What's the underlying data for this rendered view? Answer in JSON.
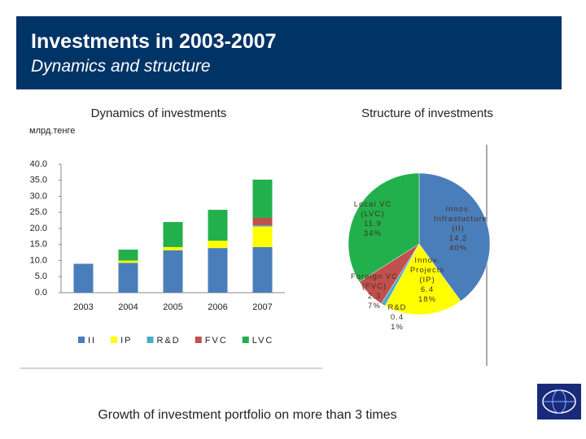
{
  "header": {
    "title": "Investments in 2003-2007",
    "subtitle": "Dynamics and structure"
  },
  "footer": "Growth of investment portfolio on more than 3 times",
  "chart_data": [
    {
      "type": "bar",
      "stacked": true,
      "title": "Dynamics of investments",
      "y_label": "млрд.тенге",
      "categories": [
        "2003",
        "2004",
        "2005",
        "2006",
        "2007"
      ],
      "series": [
        {
          "name": "II",
          "color": "#4a7ebb",
          "values": [
            9.0,
            9.3,
            13.2,
            13.9,
            14.2
          ]
        },
        {
          "name": "IP",
          "color": "#ffff00",
          "values": [
            0,
            0.7,
            1.0,
            2.3,
            6.4
          ]
        },
        {
          "name": "R&D",
          "color": "#4bacc6",
          "values": [
            0,
            0,
            0,
            0,
            0.4
          ]
        },
        {
          "name": "FVC",
          "color": "#c0504d",
          "values": [
            0,
            0,
            0,
            0,
            2.3
          ]
        },
        {
          "name": "LVC",
          "color": "#22b04c",
          "values": [
            0,
            3.4,
            7.8,
            9.6,
            11.9
          ]
        }
      ],
      "ylim": [
        0,
        40
      ],
      "yticks": [
        {
          "value": 0,
          "label": "0.0"
        },
        {
          "value": 5,
          "label": "5.0"
        },
        {
          "value": 10,
          "label": "10.0"
        },
        {
          "value": 15,
          "label": "15.0"
        },
        {
          "value": 20,
          "label": "20.0"
        },
        {
          "value": 25,
          "label": "25.0"
        },
        {
          "value": 30,
          "label": "30.0"
        },
        {
          "value": 35,
          "label": "35.0"
        },
        {
          "value": 40,
          "label": "40.0"
        }
      ],
      "grid": false,
      "legend": "bottom"
    },
    {
      "type": "pie",
      "title": "Structure of investments",
      "labels": [
        "Innov. Infrastucture (II)",
        "Innov. Projects (IP)",
        "R&D",
        "Foreign VC (FVC)",
        "Local VC (LVC)"
      ],
      "values": [
        40,
        18,
        1,
        7,
        34
      ],
      "value_labels": [
        "40%",
        "18%",
        "1%",
        "7%",
        "34%"
      ],
      "amounts": [
        14.2,
        6.4,
        0.4,
        2.3,
        11.9
      ],
      "colors": [
        "#4a7ebb",
        "#ffff00",
        "#4bacc6",
        "#c0504d",
        "#22b04c"
      ]
    }
  ]
}
